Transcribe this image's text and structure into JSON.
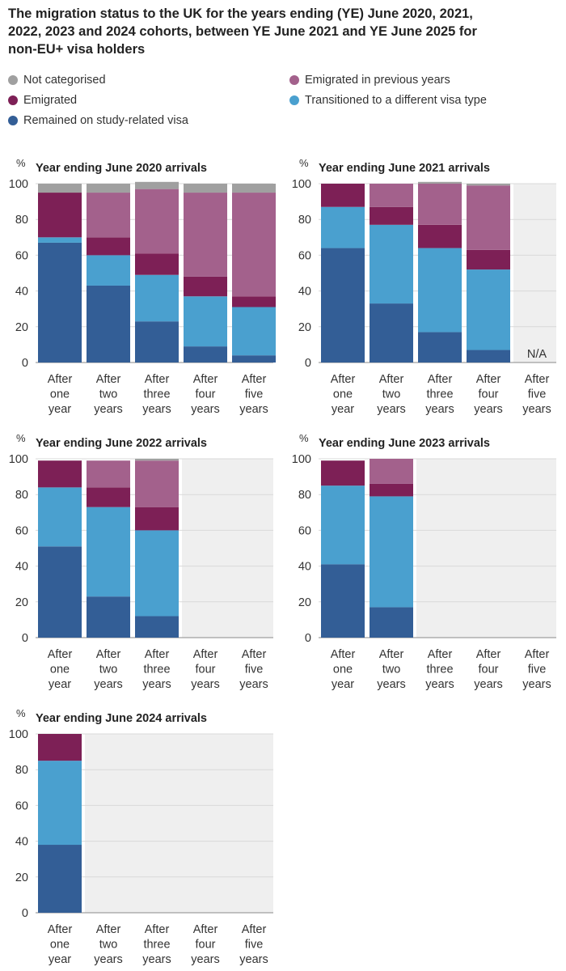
{
  "title": "The migration status to the UK for the years ending (YE) June 2020, 2021, 2022, 2023 and 2024 cohorts, between YE June 2021 and YE June 2025 for non-EU+ visa holders",
  "legend": [
    {
      "name": "Not categorised",
      "color": "#a0a0a0"
    },
    {
      "name": "Emigrated in previous years",
      "color": "#a3618c"
    },
    {
      "name": "Emigrated",
      "color": "#7d2056"
    },
    {
      "name": "Transitioned to a different visa type",
      "color": "#4aa0cf"
    },
    {
      "name": "Remained on study-related visa",
      "color": "#335e96"
    }
  ],
  "chart_data": [
    {
      "type": "bar",
      "stacked": true,
      "title": "Year ending June 2020 arrivals",
      "ylabel": "%",
      "ylim": [
        0,
        100
      ],
      "yticks": [
        0,
        20,
        40,
        60,
        80,
        100
      ],
      "categories": [
        "After one year",
        "After two years",
        "After three years",
        "After four years",
        "After five years"
      ],
      "series": [
        {
          "name": "Remained on study-related visa",
          "values": [
            67,
            43,
            23,
            9,
            4
          ]
        },
        {
          "name": "Transitioned to a different visa type",
          "values": [
            3,
            17,
            26,
            28,
            27
          ]
        },
        {
          "name": "Emigrated",
          "values": [
            25,
            10,
            12,
            11,
            6
          ]
        },
        {
          "name": "Emigrated in previous years",
          "values": [
            0,
            25,
            36,
            47,
            58
          ]
        },
        {
          "name": "Not categorised",
          "values": [
            5,
            5,
            4,
            5,
            5
          ]
        }
      ],
      "na_note": ""
    },
    {
      "type": "bar",
      "stacked": true,
      "title": "Year ending June 2021 arrivals",
      "ylabel": "%",
      "ylim": [
        0,
        100
      ],
      "yticks": [
        0,
        20,
        40,
        60,
        80,
        100
      ],
      "categories": [
        "After one year",
        "After two years",
        "After three years",
        "After four years",
        "After five years"
      ],
      "series": [
        {
          "name": "Remained on study-related visa",
          "values": [
            64,
            33,
            17,
            7,
            null
          ]
        },
        {
          "name": "Transitioned to a different visa type",
          "values": [
            23,
            44,
            47,
            45,
            null
          ]
        },
        {
          "name": "Emigrated",
          "values": [
            13,
            10,
            13,
            11,
            null
          ]
        },
        {
          "name": "Emigrated in previous years",
          "values": [
            0,
            13,
            23,
            36,
            null
          ]
        },
        {
          "name": "Not categorised",
          "values": [
            0,
            0,
            1,
            1,
            null
          ]
        }
      ],
      "na_note": "N/A"
    },
    {
      "type": "bar",
      "stacked": true,
      "title": "Year ending June 2022 arrivals",
      "ylabel": "%",
      "ylim": [
        0,
        100
      ],
      "yticks": [
        0,
        20,
        40,
        60,
        80,
        100
      ],
      "categories": [
        "After one year",
        "After two years",
        "After three years",
        "After four years",
        "After five years"
      ],
      "series": [
        {
          "name": "Remained on study-related visa",
          "values": [
            51,
            23,
            12,
            null,
            null
          ]
        },
        {
          "name": "Transitioned to a different visa type",
          "values": [
            33,
            50,
            48,
            null,
            null
          ]
        },
        {
          "name": "Emigrated",
          "values": [
            15,
            11,
            13,
            null,
            null
          ]
        },
        {
          "name": "Emigrated in previous years",
          "values": [
            0,
            15,
            26,
            null,
            null
          ]
        },
        {
          "name": "Not categorised",
          "values": [
            0,
            0,
            1,
            null,
            null
          ]
        }
      ],
      "na_note": ""
    },
    {
      "type": "bar",
      "stacked": true,
      "title": "Year ending June 2023 arrivals",
      "ylabel": "%",
      "ylim": [
        0,
        100
      ],
      "yticks": [
        0,
        20,
        40,
        60,
        80,
        100
      ],
      "categories": [
        "After one year",
        "After two years",
        "After three years",
        "After four years",
        "After five years"
      ],
      "series": [
        {
          "name": "Remained on study-related visa",
          "values": [
            41,
            17,
            null,
            null,
            null
          ]
        },
        {
          "name": "Transitioned to a different visa type",
          "values": [
            44,
            62,
            null,
            null,
            null
          ]
        },
        {
          "name": "Emigrated",
          "values": [
            14,
            7,
            null,
            null,
            null
          ]
        },
        {
          "name": "Emigrated in previous years",
          "values": [
            0,
            14,
            null,
            null,
            null
          ]
        },
        {
          "name": "Not categorised",
          "values": [
            0,
            0,
            null,
            null,
            null
          ]
        }
      ],
      "na_note": ""
    },
    {
      "type": "bar",
      "stacked": true,
      "title": "Year ending June 2024 arrivals",
      "ylabel": "%",
      "ylim": [
        0,
        100
      ],
      "yticks": [
        0,
        20,
        40,
        60,
        80,
        100
      ],
      "categories": [
        "After one year",
        "After two years",
        "After three years",
        "After four years",
        "After five years"
      ],
      "series": [
        {
          "name": "Remained on study-related visa",
          "values": [
            38,
            null,
            null,
            null,
            null
          ]
        },
        {
          "name": "Transitioned to a different visa type",
          "values": [
            47,
            null,
            null,
            null,
            null
          ]
        },
        {
          "name": "Emigrated",
          "values": [
            15,
            null,
            null,
            null,
            null
          ]
        },
        {
          "name": "Emigrated in previous years",
          "values": [
            0,
            null,
            null,
            null,
            null
          ]
        },
        {
          "name": "Not categorised",
          "values": [
            0,
            null,
            null,
            null,
            null
          ]
        }
      ],
      "na_note": ""
    }
  ]
}
